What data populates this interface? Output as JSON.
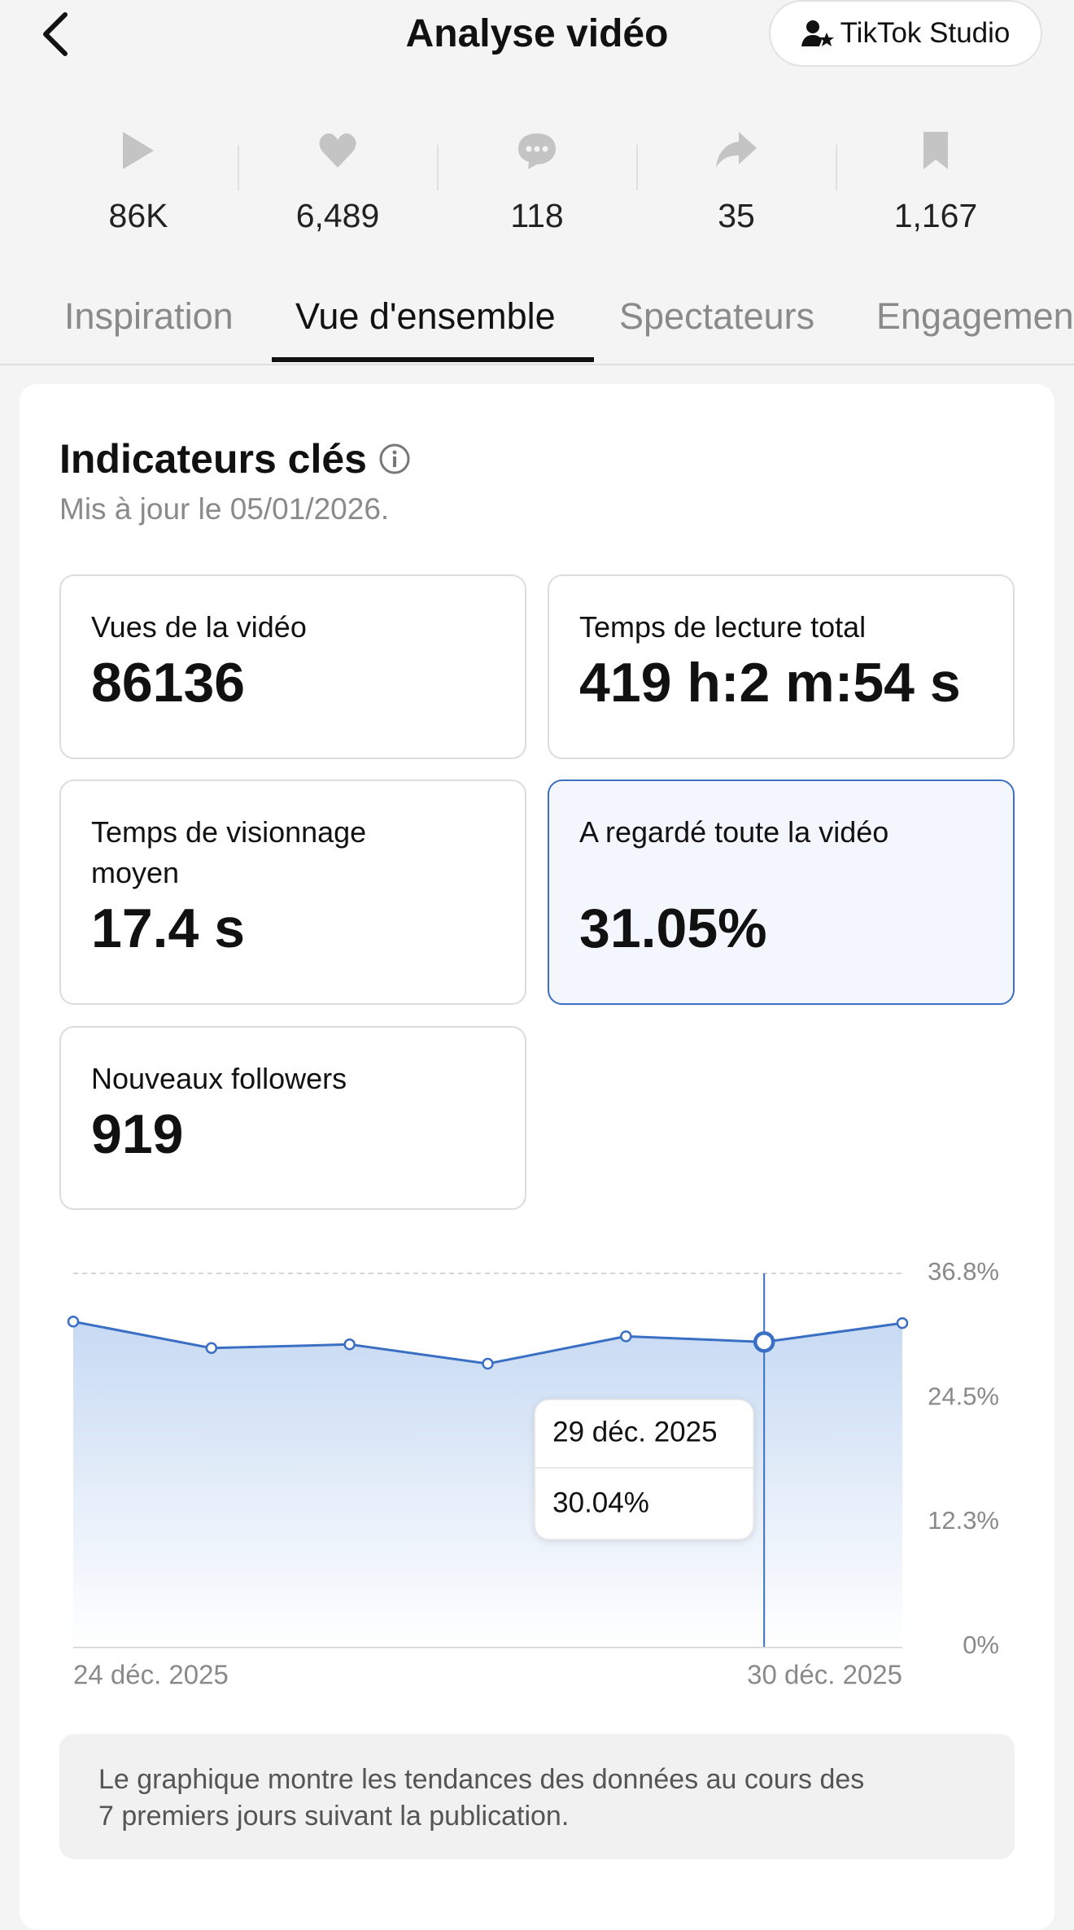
{
  "header": {
    "title": "Analyse vidéo",
    "button": "TikTok Studio"
  },
  "stats": [
    "86K",
    "6,489",
    "118",
    "35",
    "1,167"
  ],
  "tabs": [
    "Inspiration",
    "Vue d'ensemble",
    "Spectateurs",
    "Engagement"
  ],
  "card": {
    "title": "Indicateurs clés",
    "subtitle": "Mis à jour le 05/01/2026.",
    "metrics": [
      {
        "label": "Vues de la vidéo",
        "value": "86136"
      },
      {
        "label": "Temps de lecture total",
        "value": "419 h:2 m:54 s"
      },
      {
        "label": "Temps de visionnage moyen",
        "value": "17.4 s"
      },
      {
        "label": "A regardé toute la vidéo",
        "value": "31.05%"
      },
      {
        "label": "Nouveaux followers",
        "value": "919"
      }
    ]
  },
  "chart_data": {
    "type": "line",
    "categories": [
      "24 déc. 2025",
      null,
      null,
      null,
      null,
      null,
      "30 déc. 2025"
    ],
    "series": [
      {
        "color": "#3b6fc4",
        "values": [
          32.05,
          29.44,
          29.8,
          27.9,
          30.6,
          30.04,
          31.9
        ]
      }
    ],
    "ylim": [
      0,
      36.8
    ],
    "yticks": [
      {
        "value": 0,
        "label": "0%"
      },
      {
        "value": 12.3,
        "label": "12.3%"
      },
      {
        "value": 24.5,
        "label": "24.5%"
      },
      {
        "value": 36.8,
        "label": "36.8%"
      }
    ],
    "grid": true,
    "tooltip": {
      "category": "29 déc. 2025",
      "value": 30.04,
      "value_label": "30.04%"
    }
  },
  "note": {
    "lines": [
      "Le graphique montre les tendances des données au cours des",
      "7 premiers jours suivant la publication."
    ]
  }
}
